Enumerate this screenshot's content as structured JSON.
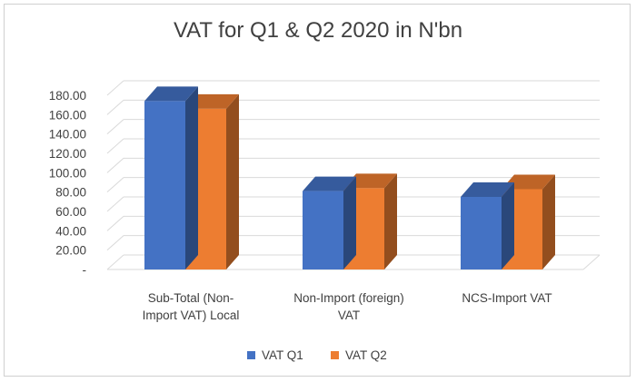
{
  "chart_data": {
    "type": "bar",
    "title": "VAT for Q1 & Q2 2020 in N'bn",
    "categories": [
      [
        "Sub-Total (Non-",
        "Import VAT) Local"
      ],
      [
        "Non-Import (foreign)",
        "VAT"
      ],
      [
        "NCS-Import VAT"
      ]
    ],
    "series": [
      {
        "name": "VAT Q1",
        "values": [
          174.0,
          81.0,
          75.0
        ],
        "color": "#4472C4"
      },
      {
        "name": "VAT Q2",
        "values": [
          166.0,
          84.0,
          83.0
        ],
        "color": "#ED7D31"
      }
    ],
    "ylim": [
      0,
      180
    ],
    "yticks": [
      "-",
      "20.00",
      "40.00",
      "60.00",
      "80.00",
      "100.00",
      "120.00",
      "140.00",
      "160.00",
      "180.00"
    ],
    "grid": true,
    "legend_position": "bottom",
    "style": "3d-clustered-column"
  }
}
